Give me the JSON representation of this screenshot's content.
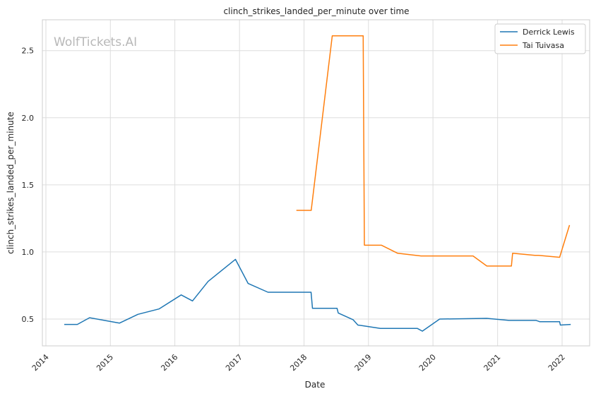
{
  "chart_data": {
    "type": "line",
    "title": "clinch_strikes_landed_per_minute over time",
    "xlabel": "Date",
    "ylabel": "clinch_strikes_landed_per_minute",
    "watermark": "WolfTickets.AI",
    "x_ticks": [
      "2014",
      "2015",
      "2016",
      "2017",
      "2018",
      "2019",
      "2020",
      "2021",
      "2022"
    ],
    "y_ticks": [
      "0.5",
      "1.0",
      "1.5",
      "2.0",
      "2.5"
    ],
    "xlim": [
      "2013-12-12",
      "2022-06-06"
    ],
    "ylim": [
      0.3,
      2.73
    ],
    "grid": true,
    "legend_position": "top-right",
    "series": [
      {
        "name": "Derrick Lewis",
        "color": "#1f77b4",
        "points": [
          [
            "2014-04-15",
            0.46
          ],
          [
            "2014-06-28",
            0.46
          ],
          [
            "2014-09-05",
            0.51
          ],
          [
            "2015-02-22",
            0.47
          ],
          [
            "2015-06-06",
            0.535
          ],
          [
            "2015-10-03",
            0.575
          ],
          [
            "2016-02-06",
            0.68
          ],
          [
            "2016-04-10",
            0.635
          ],
          [
            "2016-07-07",
            0.78
          ],
          [
            "2016-12-09",
            0.945
          ],
          [
            "2017-02-19",
            0.765
          ],
          [
            "2017-06-11",
            0.7
          ],
          [
            "2018-02-10",
            0.7
          ],
          [
            "2018-02-18",
            0.58
          ],
          [
            "2018-07-07",
            0.58
          ],
          [
            "2018-07-14",
            0.545
          ],
          [
            "2018-10-06",
            0.495
          ],
          [
            "2018-11-02",
            0.455
          ],
          [
            "2018-12-01",
            0.45
          ],
          [
            "2019-03-09",
            0.43
          ],
          [
            "2019-10-05",
            0.43
          ],
          [
            "2019-11-02",
            0.41
          ],
          [
            "2020-02-08",
            0.5
          ],
          [
            "2020-10-31",
            0.505
          ],
          [
            "2021-03-06",
            0.49
          ],
          [
            "2021-08-07",
            0.49
          ],
          [
            "2021-08-28",
            0.48
          ],
          [
            "2021-12-18",
            0.48
          ],
          [
            "2021-12-22",
            0.455
          ],
          [
            "2022-02-19",
            0.46
          ]
        ]
      },
      {
        "name": "Tai Tuivasa",
        "color": "#ff7f0e",
        "points": [
          [
            "2017-11-19",
            1.31
          ],
          [
            "2018-02-11",
            1.31
          ],
          [
            "2018-06-10",
            2.61
          ],
          [
            "2018-12-02",
            2.61
          ],
          [
            "2018-12-09",
            1.05
          ],
          [
            "2019-03-16",
            1.05
          ],
          [
            "2019-06-15",
            0.99
          ],
          [
            "2019-10-26",
            0.97
          ],
          [
            "2020-08-15",
            0.97
          ],
          [
            "2020-11-01",
            0.895
          ],
          [
            "2021-03-20",
            0.895
          ],
          [
            "2021-03-27",
            0.99
          ],
          [
            "2021-07-31",
            0.975
          ],
          [
            "2021-08-20",
            0.975
          ],
          [
            "2021-12-18",
            0.96
          ],
          [
            "2022-02-12",
            1.2
          ]
        ]
      }
    ]
  }
}
